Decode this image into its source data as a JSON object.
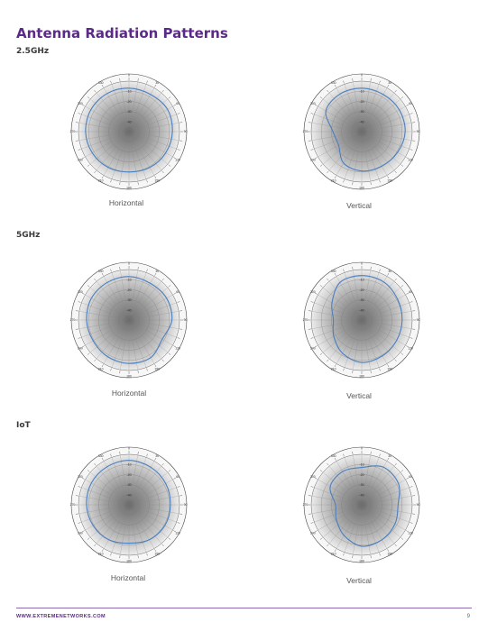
{
  "page": {
    "title": "Antenna Radiation Patterns",
    "footer_url": "WWW.EXTREMENETWORKS.COM",
    "page_number": "9"
  },
  "sections": [
    {
      "band": "2.5GHz",
      "plots": [
        {
          "label": "Horizontal"
        },
        {
          "label": "Vertical"
        }
      ]
    },
    {
      "band": "5GHz",
      "plots": [
        {
          "label": "Horizontal"
        },
        {
          "label": "Vertical"
        }
      ]
    },
    {
      "band": "IoT",
      "plots": [
        {
          "label": "Horizontal"
        },
        {
          "label": "Vertical"
        }
      ]
    }
  ],
  "colors": {
    "title": "#5b2a86",
    "trace": "#4a7fc0",
    "footer_rule": "#8e6bb0"
  },
  "chart_data": [
    {
      "type": "polar",
      "band": "2.5GHz",
      "plane": "Horizontal",
      "ring_labels": [
        "-10",
        "-20",
        "-30",
        "-40"
      ],
      "angle_deg": [
        0,
        30,
        60,
        90,
        120,
        150,
        180,
        210,
        240,
        270,
        300,
        330
      ],
      "radius_rel": [
        0.86,
        0.85,
        0.88,
        0.86,
        0.84,
        0.82,
        0.8,
        0.82,
        0.84,
        0.86,
        0.87,
        0.87
      ]
    },
    {
      "type": "polar",
      "band": "2.5GHz",
      "plane": "Vertical",
      "ring_labels": [
        "-10",
        "-20",
        "-30",
        "-40"
      ],
      "angle_deg": [
        0,
        30,
        60,
        90,
        120,
        150,
        180,
        210,
        240,
        270,
        300,
        330
      ],
      "radius_rel": [
        0.86,
        0.85,
        0.86,
        0.86,
        0.82,
        0.79,
        0.78,
        0.72,
        0.53,
        0.57,
        0.82,
        0.86
      ]
    },
    {
      "type": "polar",
      "band": "5GHz",
      "plane": "Horizontal",
      "ring_labels": [
        "-10",
        "-20",
        "-30",
        "-40"
      ],
      "angle_deg": [
        0,
        30,
        60,
        90,
        120,
        150,
        180,
        210,
        240,
        270,
        300,
        330
      ],
      "radius_rel": [
        0.86,
        0.84,
        0.86,
        0.85,
        0.76,
        0.86,
        0.86,
        0.84,
        0.82,
        0.84,
        0.86,
        0.86
      ]
    },
    {
      "type": "polar",
      "band": "5GHz",
      "plane": "Vertical",
      "ring_labels": [
        "-10",
        "-20",
        "-30",
        "-40"
      ],
      "angle_deg": [
        0,
        30,
        60,
        90,
        120,
        150,
        180,
        210,
        240,
        270,
        300,
        330
      ],
      "radius_rel": [
        0.88,
        0.87,
        0.82,
        0.8,
        0.8,
        0.82,
        0.84,
        0.76,
        0.64,
        0.56,
        0.68,
        0.86
      ]
    },
    {
      "type": "polar",
      "band": "IoT",
      "plane": "Horizontal",
      "ring_labels": [
        "-10",
        "-20",
        "-30",
        "-40"
      ],
      "angle_deg": [
        0,
        30,
        60,
        90,
        120,
        150,
        180,
        210,
        240,
        270,
        300,
        330
      ],
      "radius_rel": [
        0.88,
        0.86,
        0.84,
        0.82,
        0.82,
        0.8,
        0.76,
        0.8,
        0.82,
        0.84,
        0.86,
        0.87
      ]
    },
    {
      "type": "polar",
      "band": "IoT",
      "plane": "Vertical",
      "ring_labels": [
        "-10",
        "-20",
        "-30",
        "-40"
      ],
      "angle_deg": [
        0,
        30,
        60,
        90,
        120,
        150,
        180,
        210,
        240,
        270,
        300,
        330
      ],
      "radius_rel": [
        0.74,
        0.86,
        0.84,
        0.72,
        0.76,
        0.8,
        0.82,
        0.7,
        0.58,
        0.52,
        0.72,
        0.76
      ]
    }
  ]
}
